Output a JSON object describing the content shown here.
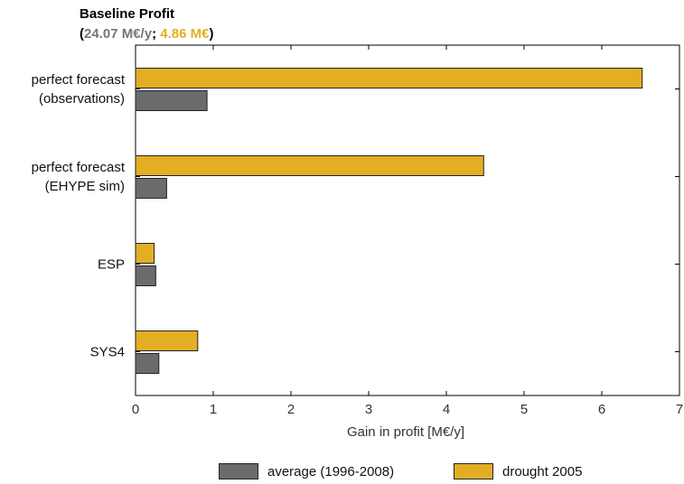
{
  "title": {
    "heading": "Baseline Profit",
    "open_paren": "(",
    "average_value": "24.07 M€/y",
    "separator": "; ",
    "drought_value": "4.86 M€",
    "close_paren": ")"
  },
  "colors": {
    "average": "#6b6b6d",
    "drought": "#e3ae23",
    "average_title_text": "#767676",
    "drought_title_text": "#e3ae23"
  },
  "chart_data": {
    "type": "bar",
    "orientation": "horizontal",
    "categories": [
      [
        "perfect forecast",
        "(observations)"
      ],
      [
        "perfect forecast",
        "(EHYPE sim)"
      ],
      [
        "ESP"
      ],
      [
        "SYS4"
      ]
    ],
    "series": [
      {
        "name": "drought 2005",
        "values": [
          6.52,
          4.48,
          0.24,
          0.8
        ]
      },
      {
        "name": "average (1996-2008)",
        "values": [
          0.92,
          0.4,
          0.26,
          0.3
        ]
      }
    ],
    "xlabel": "Gain in profit [M€/y]",
    "xlim": [
      0,
      7
    ],
    "xticks": [
      "0",
      "1",
      "2",
      "3",
      "4",
      "5",
      "6",
      "7"
    ],
    "grid": false,
    "legend_position": "bottom"
  },
  "legend": {
    "average_label": "average (1996-2008)",
    "drought_label": "drought 2005"
  }
}
